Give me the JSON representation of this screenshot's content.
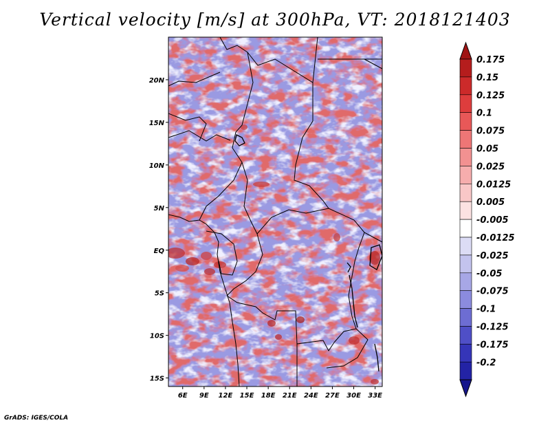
{
  "title": "Vertical velocity [m/s] at 300hPa, VT: 2018121403",
  "credit": "GrADS: IGES/COLA",
  "map": {
    "lon_range": [
      4,
      34
    ],
    "lat_range": [
      -16,
      25
    ],
    "lon_ticks": [
      {
        "value": 6,
        "label": "6E"
      },
      {
        "value": 9,
        "label": "9E"
      },
      {
        "value": 12,
        "label": "12E"
      },
      {
        "value": 15,
        "label": "15E"
      },
      {
        "value": 18,
        "label": "18E"
      },
      {
        "value": 21,
        "label": "21E"
      },
      {
        "value": 24,
        "label": "24E"
      },
      {
        "value": 27,
        "label": "27E"
      },
      {
        "value": 30,
        "label": "30E"
      },
      {
        "value": 33,
        "label": "33E"
      }
    ],
    "lat_ticks": [
      {
        "value": 20,
        "label": "20N"
      },
      {
        "value": 15,
        "label": "15N"
      },
      {
        "value": 10,
        "label": "10N"
      },
      {
        "value": 5,
        "label": "5N"
      },
      {
        "value": 0,
        "label": "EQ"
      },
      {
        "value": -5,
        "label": "5S"
      },
      {
        "value": -10,
        "label": "10S"
      },
      {
        "value": -15,
        "label": "15S"
      }
    ],
    "field": "vertical velocity",
    "level": "300hPa",
    "units": "m/s",
    "valid_time": "2018121403"
  },
  "colorbar": {
    "levels": [
      {
        "label": "0.175",
        "color": "#b51d1d"
      },
      {
        "label": "0.15",
        "color": "#cc2a2a"
      },
      {
        "label": "0.125",
        "color": "#de3d3d"
      },
      {
        "label": "0.1",
        "color": "#e85858"
      },
      {
        "label": "0.075",
        "color": "#ee7676"
      },
      {
        "label": "0.05",
        "color": "#f29191"
      },
      {
        "label": "0.025",
        "color": "#f6adad"
      },
      {
        "label": "0.0125",
        "color": "#f9c7c7"
      },
      {
        "label": "0.005",
        "color": "#fce2e2"
      },
      {
        "label": "-0.005",
        "color": "#ffffff"
      },
      {
        "label": "-0.0125",
        "color": "#dcdcf5"
      },
      {
        "label": "-0.025",
        "color": "#c3c3ee"
      },
      {
        "label": "-0.05",
        "color": "#a7a7e6"
      },
      {
        "label": "-0.075",
        "color": "#8b8bde"
      },
      {
        "label": "-0.1",
        "color": "#6d6dd3"
      },
      {
        "label": "-0.125",
        "color": "#4f4fc7"
      },
      {
        "label": "-0.175",
        "color": "#3535b8"
      },
      {
        "label": "-0.2",
        "color": "#2323a5"
      }
    ],
    "top_arrow_color": "#a01414",
    "bottom_arrow_color": "#16168c"
  }
}
